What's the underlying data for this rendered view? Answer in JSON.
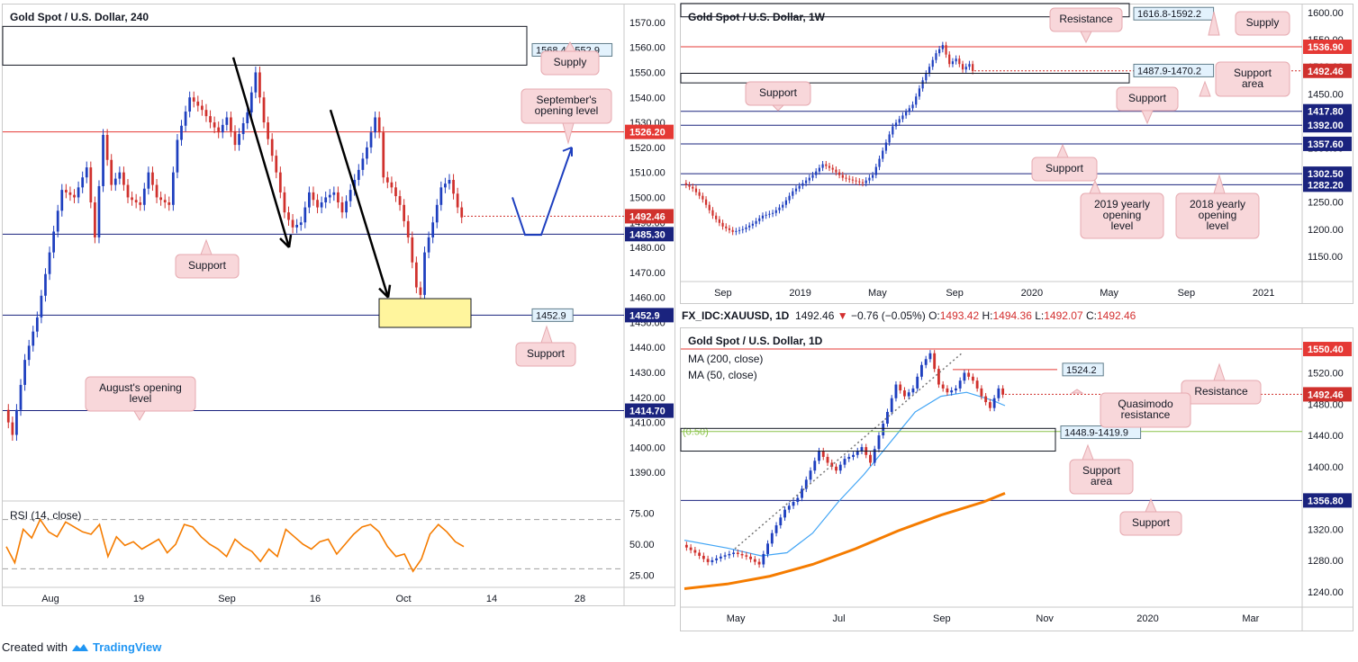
{
  "footer": {
    "created_with": "Created with",
    "brand": "TradingView"
  },
  "colors": {
    "bull": "#1e3fbf",
    "bear": "#d0312d",
    "resistance": "#e53935",
    "support": "#1a237e",
    "rsi": "#f57c00",
    "ma50": "#42a5f5",
    "ma200": "#f57c00",
    "callout": "#f8d7da",
    "highlight": "#fff59d"
  },
  "infobar": {
    "symbol": "FX_IDC:XAUUSD, 1D",
    "price": "1492.46",
    "arrow": "▼",
    "change": "−0.76 (−0.05%)",
    "o_label": "O:",
    "o": "1493.42",
    "h_label": "H:",
    "h": "1494.36",
    "l_label": "L:",
    "l": "1492.07",
    "c_label": "C:",
    "c": "1492.46"
  },
  "chart_data": [
    {
      "id": "h4",
      "type": "line",
      "title": "Gold Spot / U.S. Dollar, 240",
      "ylim": [
        1380,
        1575
      ],
      "y_ticks": [
        "1570.00",
        "1560.00",
        "1550.00",
        "1540.00",
        "1530.00",
        "1520.00",
        "1510.00",
        "1500.00",
        "1490.00",
        "1480.00",
        "1470.00",
        "1460.00",
        "1450.00",
        "1440.00",
        "1430.00",
        "1420.00",
        "1410.00",
        "1400.00",
        "1390.00"
      ],
      "x_ticks": [
        "Aug",
        "19",
        "Sep",
        "16",
        "Oct",
        "14",
        "28"
      ],
      "path": [
        [
          0,
          1415
        ],
        [
          2,
          1405
        ],
        [
          5,
          1435
        ],
        [
          8,
          1452
        ],
        [
          11,
          1478
        ],
        [
          14,
          1503
        ],
        [
          17,
          1500
        ],
        [
          20,
          1512
        ],
        [
          22,
          1484
        ],
        [
          24,
          1525
        ],
        [
          26,
          1505
        ],
        [
          28,
          1510
        ],
        [
          30,
          1500
        ],
        [
          33,
          1497
        ],
        [
          35,
          1510
        ],
        [
          37,
          1500
        ],
        [
          40,
          1497
        ],
        [
          42,
          1523
        ],
        [
          45,
          1540
        ],
        [
          48,
          1535
        ],
        [
          50,
          1530
        ],
        [
          52,
          1526
        ],
        [
          54,
          1532
        ],
        [
          56,
          1521
        ],
        [
          59,
          1534
        ],
        [
          61,
          1550
        ],
        [
          63,
          1530
        ],
        [
          66,
          1510
        ],
        [
          68,
          1494
        ],
        [
          70,
          1488
        ],
        [
          72,
          1490
        ],
        [
          74,
          1502
        ],
        [
          76,
          1496
        ],
        [
          78,
          1500
        ],
        [
          80,
          1502
        ],
        [
          82,
          1494
        ],
        [
          84,
          1503
        ],
        [
          86,
          1511
        ],
        [
          88,
          1520
        ],
        [
          90,
          1532
        ],
        [
          91,
          1526
        ],
        [
          92,
          1508
        ],
        [
          94,
          1504
        ],
        [
          96,
          1497
        ],
        [
          98,
          1484
        ],
        [
          100,
          1464
        ],
        [
          101,
          1461
        ],
        [
          102,
          1478
        ],
        [
          104,
          1490
        ],
        [
          106,
          1504
        ],
        [
          108,
          1507
        ],
        [
          110,
          1496
        ],
        [
          111,
          1492
        ]
      ],
      "levels": [
        {
          "label": "1526.20",
          "value": 1526.2,
          "color": "#e53935"
        },
        {
          "label": "1485.30",
          "value": 1485.3,
          "color": "#1a237e"
        },
        {
          "label": "1452.9",
          "value": 1452.9,
          "color": "#1a237e"
        },
        {
          "label": "1414.70",
          "value": 1414.7,
          "color": "#1a237e"
        }
      ],
      "last_price": {
        "label": "1492.46",
        "value": 1492.46
      },
      "zone_labels": [
        "1568.4-1552.9"
      ],
      "annotations": [
        "Supply",
        "September's opening level",
        "Support",
        "Support",
        "August's opening level"
      ],
      "rsi": {
        "label": "RSI (14, close)",
        "ylim": [
          15,
          85
        ],
        "ticks": [
          "75.00",
          "50.00",
          "25.00"
        ],
        "values": [
          48,
          35,
          62,
          55,
          70,
          60,
          56,
          68,
          64,
          60,
          58,
          66,
          40,
          56,
          49,
          52,
          46,
          50,
          54,
          43,
          50,
          66,
          64,
          56,
          50,
          46,
          40,
          54,
          48,
          44,
          36,
          46,
          40,
          62,
          56,
          50,
          46,
          52,
          54,
          42,
          50,
          58,
          64,
          66,
          60,
          48,
          40,
          42,
          28,
          38,
          58,
          66,
          60,
          52,
          48
        ]
      }
    },
    {
      "id": "w1",
      "type": "line",
      "title": "Gold Spot / U.S. Dollar, 1W",
      "ylim": [
        1110,
        1605
      ],
      "y_ticks": [
        "1600.00",
        "1550.00",
        "1500.00",
        "1450.00",
        "1350.00",
        "1250.00",
        "1200.00",
        "1150.00"
      ],
      "x_ticks": [
        "Sep",
        "2019",
        "May",
        "Sep",
        "2020",
        "May",
        "Sep",
        "2021"
      ],
      "path": [
        [
          0,
          1285
        ],
        [
          3,
          1275
        ],
        [
          6,
          1255
        ],
        [
          9,
          1225
        ],
        [
          12,
          1205
        ],
        [
          15,
          1195
        ],
        [
          18,
          1200
        ],
        [
          21,
          1210
        ],
        [
          24,
          1225
        ],
        [
          27,
          1230
        ],
        [
          30,
          1245
        ],
        [
          33,
          1270
        ],
        [
          36,
          1285
        ],
        [
          39,
          1300
        ],
        [
          42,
          1320
        ],
        [
          45,
          1310
        ],
        [
          48,
          1295
        ],
        [
          51,
          1290
        ],
        [
          54,
          1285
        ],
        [
          57,
          1300
        ],
        [
          60,
          1345
        ],
        [
          63,
          1390
        ],
        [
          66,
          1410
        ],
        [
          69,
          1430
        ],
        [
          72,
          1475
        ],
        [
          74,
          1500
        ],
        [
          76,
          1525
        ],
        [
          78,
          1540
        ],
        [
          80,
          1505
        ],
        [
          82,
          1515
        ],
        [
          84,
          1495
        ],
        [
          86,
          1505
        ],
        [
          87,
          1492
        ]
      ],
      "levels": [
        {
          "label": "1536.90",
          "value": 1536.9,
          "color": "#e53935"
        },
        {
          "label": "1417.80",
          "value": 1417.8,
          "color": "#1a237e"
        },
        {
          "label": "1392.00",
          "value": 1392.0,
          "color": "#1a237e"
        },
        {
          "label": "1357.60",
          "value": 1357.6,
          "color": "#1a237e"
        },
        {
          "label": "1302.50",
          "value": 1302.5,
          "color": "#1a237e"
        },
        {
          "label": "1282.20",
          "value": 1282.2,
          "color": "#1a237e"
        }
      ],
      "last_price": {
        "label": "1492.46",
        "value": 1492.46
      },
      "zone_labels": [
        "1616.8-1592.2",
        "1487.9-1470.2"
      ],
      "annotations": [
        "Resistance",
        "Supply",
        "Support area",
        "Support",
        "Support",
        "Support",
        "2019 yearly opening level",
        "2018 yearly opening level"
      ]
    },
    {
      "id": "d1",
      "type": "line",
      "title": "Gold Spot / U.S. Dollar, 1D",
      "legend": [
        "MA (200, close)",
        "MA (50, close)"
      ],
      "ylim": [
        1225,
        1570
      ],
      "y_ticks": [
        "1520.00",
        "1480.00",
        "1440.00",
        "1400.00",
        "1320.00",
        "1280.00",
        "1240.00"
      ],
      "x_ticks": [
        "May",
        "Jul",
        "Sep",
        "Nov",
        "2020",
        "Mar"
      ],
      "fib_label": "0.50",
      "path": [
        [
          0,
          1300
        ],
        [
          3,
          1290
        ],
        [
          6,
          1278
        ],
        [
          9,
          1285
        ],
        [
          12,
          1290
        ],
        [
          15,
          1285
        ],
        [
          18,
          1275
        ],
        [
          21,
          1315
        ],
        [
          24,
          1345
        ],
        [
          27,
          1360
        ],
        [
          30,
          1395
        ],
        [
          32,
          1420
        ],
        [
          34,
          1405
        ],
        [
          36,
          1395
        ],
        [
          38,
          1410
        ],
        [
          40,
          1415
        ],
        [
          42,
          1425
        ],
        [
          44,
          1405
        ],
        [
          46,
          1440
        ],
        [
          48,
          1470
        ],
        [
          50,
          1505
        ],
        [
          52,
          1490
        ],
        [
          54,
          1500
        ],
        [
          56,
          1530
        ],
        [
          58,
          1545
        ],
        [
          60,
          1505
        ],
        [
          62,
          1495
        ],
        [
          64,
          1500
        ],
        [
          66,
          1520
        ],
        [
          68,
          1510
        ],
        [
          70,
          1490
        ],
        [
          72,
          1475
        ],
        [
          74,
          1500
        ],
        [
          75,
          1492
        ]
      ],
      "ma50": [
        [
          0,
          1306
        ],
        [
          10,
          1296
        ],
        [
          18,
          1286
        ],
        [
          24,
          1290
        ],
        [
          30,
          1315
        ],
        [
          36,
          1355
        ],
        [
          42,
          1390
        ],
        [
          48,
          1430
        ],
        [
          54,
          1470
        ],
        [
          60,
          1490
        ],
        [
          66,
          1495
        ],
        [
          72,
          1485
        ],
        [
          75,
          1478
        ]
      ],
      "ma200": [
        [
          0,
          1244
        ],
        [
          10,
          1250
        ],
        [
          20,
          1260
        ],
        [
          30,
          1275
        ],
        [
          40,
          1295
        ],
        [
          50,
          1318
        ],
        [
          60,
          1338
        ],
        [
          70,
          1355
        ],
        [
          75,
          1366
        ]
      ],
      "levels": [
        {
          "label": "1550.40",
          "value": 1550.4,
          "color": "#e53935"
        },
        {
          "label": "1356.80",
          "value": 1356.8,
          "color": "#1a237e"
        }
      ],
      "last_price": {
        "label": "1492.46",
        "value": 1492.46
      },
      "zone_labels": [
        "1524.2",
        "1448.9-1419.9"
      ],
      "annotations": [
        "Resistance",
        "Quasimodo resistance",
        "Support area",
        "Support"
      ]
    }
  ]
}
